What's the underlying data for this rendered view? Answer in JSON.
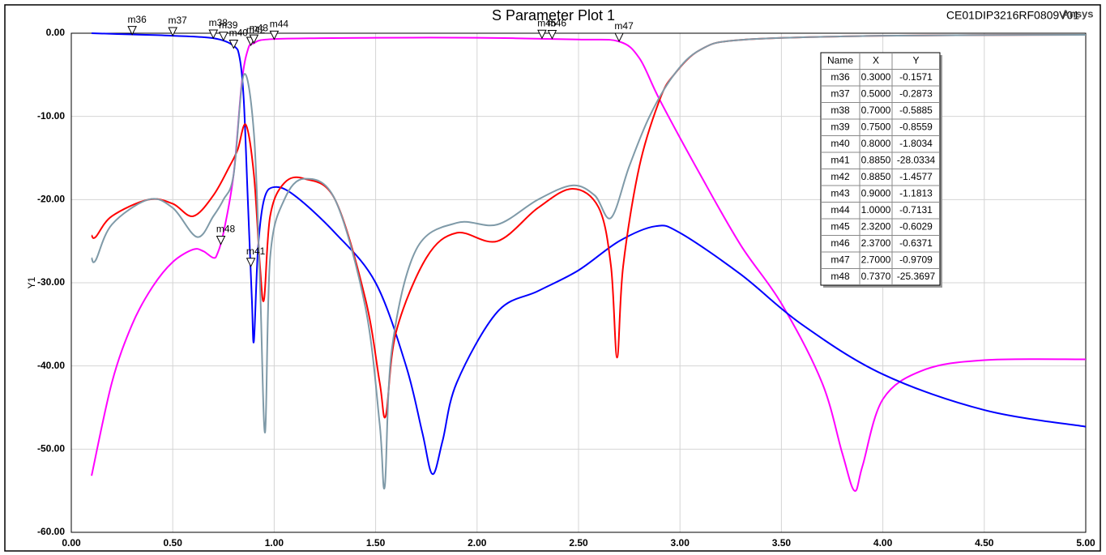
{
  "chart_data": {
    "type": "line",
    "title": "S Parameter Plot 1",
    "subtitle": "CE01DIP3216RF0809V01",
    "brand": "Ansys",
    "y_label": "Y1",
    "xlim": [
      0,
      5
    ],
    "ylim": [
      -60,
      0
    ],
    "grid": true,
    "xticks": [
      {
        "value": 0,
        "label": "0.00"
      },
      {
        "value": 0.5,
        "label": "0.50"
      },
      {
        "value": 1,
        "label": "1.00"
      },
      {
        "value": 1.5,
        "label": "1.50"
      },
      {
        "value": 2,
        "label": "2.00"
      },
      {
        "value": 2.5,
        "label": "2.50"
      },
      {
        "value": 3,
        "label": "3.00"
      },
      {
        "value": 3.5,
        "label": "3.50"
      },
      {
        "value": 4,
        "label": "4.00"
      },
      {
        "value": 4.5,
        "label": "4.50"
      },
      {
        "value": 5,
        "label": "5.00"
      }
    ],
    "yticks": [
      {
        "value": 0,
        "label": "0.00"
      },
      {
        "value": -10,
        "label": "-10.00"
      },
      {
        "value": -20,
        "label": "-20.00"
      },
      {
        "value": -30,
        "label": "-30.00"
      },
      {
        "value": -40,
        "label": "-40.00"
      },
      {
        "value": -50,
        "label": "-50.00"
      },
      {
        "value": -60,
        "label": "-60.00"
      }
    ],
    "series": [
      {
        "color": "#ff00ff",
        "x": [
          0.1,
          0.2,
          0.3,
          0.4,
          0.5,
          0.6,
          0.65,
          0.7,
          0.72,
          0.75,
          0.8,
          0.84,
          0.87,
          0.9,
          1.0,
          1.5,
          2.0,
          2.5,
          2.7,
          2.8,
          2.9,
          3.1,
          3.3,
          3.5,
          3.7,
          3.8,
          3.86,
          3.9,
          4.0,
          4.2,
          4.5,
          5.0
        ],
        "values": [
          -53.2,
          -42,
          -35,
          -30.5,
          -27.5,
          -26,
          -26.2,
          -27,
          -26.5,
          -24,
          -17,
          -6,
          -2,
          -1.2,
          -0.7,
          -0.55,
          -0.55,
          -0.75,
          -1,
          -3,
          -8,
          -17,
          -25.5,
          -32.5,
          -42,
          -50.5,
          -55,
          -52,
          -44,
          -40.5,
          -39.3,
          -39.2
        ]
      },
      {
        "color": "#0000ff",
        "x": [
          0.1,
          0.3,
          0.5,
          0.7,
          0.8,
          0.83,
          0.85,
          0.87,
          0.89,
          0.9,
          0.92,
          0.95,
          1.0,
          1.1,
          1.3,
          1.5,
          1.65,
          1.73,
          1.78,
          1.83,
          1.9,
          2.1,
          2.3,
          2.5,
          2.7,
          2.88,
          3.0,
          3.3,
          3.6,
          4.0,
          4.5,
          5.0
        ],
        "values": [
          0,
          -0.15,
          -0.3,
          -0.6,
          -1.5,
          -3,
          -8,
          -20,
          -32,
          -37,
          -26,
          -20,
          -18.5,
          -19.5,
          -24,
          -30,
          -40,
          -48,
          -53,
          -49,
          -42,
          -33.5,
          -31,
          -28.5,
          -25,
          -23.2,
          -24,
          -29,
          -35,
          -41,
          -45.3,
          -47.3
        ]
      },
      {
        "color": "#ff0000",
        "x": [
          0.1,
          0.12,
          0.2,
          0.38,
          0.5,
          0.6,
          0.7,
          0.78,
          0.82,
          0.86,
          0.9,
          0.93,
          0.95,
          0.98,
          1.05,
          1.15,
          1.3,
          1.45,
          1.52,
          1.55,
          1.6,
          1.75,
          1.9,
          2.1,
          2.3,
          2.47,
          2.6,
          2.66,
          2.69,
          2.72,
          2.8,
          2.9,
          2.97,
          3.1,
          3.3,
          4.0,
          5.0
        ],
        "values": [
          -24.3,
          -24.5,
          -22,
          -20,
          -20.5,
          -22,
          -19.5,
          -16,
          -14,
          -11,
          -17,
          -28,
          -32,
          -22,
          -18,
          -17.5,
          -20,
          -32,
          -42,
          -46,
          -36,
          -27,
          -24,
          -25,
          -21,
          -18.7,
          -21,
          -28,
          -39,
          -28,
          -16,
          -8,
          -5,
          -2,
          -0.8,
          -0.3,
          -0.2
        ]
      },
      {
        "color": "#7f9aa8",
        "x": [
          0.1,
          0.12,
          0.2,
          0.38,
          0.5,
          0.62,
          0.7,
          0.75,
          0.8,
          0.85,
          0.9,
          0.93,
          0.955,
          0.98,
          1.05,
          1.15,
          1.3,
          1.45,
          1.52,
          1.545,
          1.58,
          1.7,
          1.9,
          2.1,
          2.3,
          2.47,
          2.58,
          2.66,
          2.75,
          2.85,
          2.97,
          3.1,
          3.3,
          4.0,
          5.0
        ],
        "values": [
          -27,
          -27.3,
          -23,
          -20,
          -21,
          -24.5,
          -22,
          -20,
          -17,
          -5,
          -12,
          -30,
          -48,
          -27,
          -20,
          -17.5,
          -20,
          -33,
          -47,
          -54.5,
          -38,
          -26,
          -22.8,
          -23,
          -20,
          -18.3,
          -19.5,
          -22.2,
          -16,
          -10,
          -5,
          -2,
          -0.8,
          -0.3,
          -0.2
        ]
      }
    ],
    "markers": {
      "columns": [
        "Name",
        "X",
        "Y"
      ],
      "names": [
        "m36",
        "m37",
        "m38",
        "m39",
        "m40",
        "m41",
        "m42",
        "m43",
        "m44",
        "m45",
        "m46",
        "m47",
        "m48"
      ],
      "x": [
        0.3,
        0.5,
        0.7,
        0.75,
        0.8,
        0.885,
        0.885,
        0.9,
        1.0,
        2.32,
        2.37,
        2.7,
        0.737
      ],
      "y": [
        -0.1571,
        -0.2873,
        -0.5885,
        -0.8559,
        -1.8034,
        -28.0334,
        -1.4577,
        -1.1813,
        -0.7131,
        -0.6029,
        -0.6371,
        -0.9709,
        -25.3697
      ],
      "x_labels": [
        "0.3000",
        "0.5000",
        "0.7000",
        "0.7500",
        "0.8000",
        "0.8850",
        "0.8850",
        "0.9000",
        "1.0000",
        "2.3200",
        "2.3700",
        "2.7000",
        "0.7370"
      ],
      "y_labels": [
        "-0.1571",
        "-0.2873",
        "-0.5885",
        "-0.8559",
        "-1.8034",
        "-28.0334",
        "-1.4577",
        "-1.1813",
        "-0.7131",
        "-0.6029",
        "-0.6371",
        "-0.9709",
        "-25.3697"
      ]
    }
  }
}
